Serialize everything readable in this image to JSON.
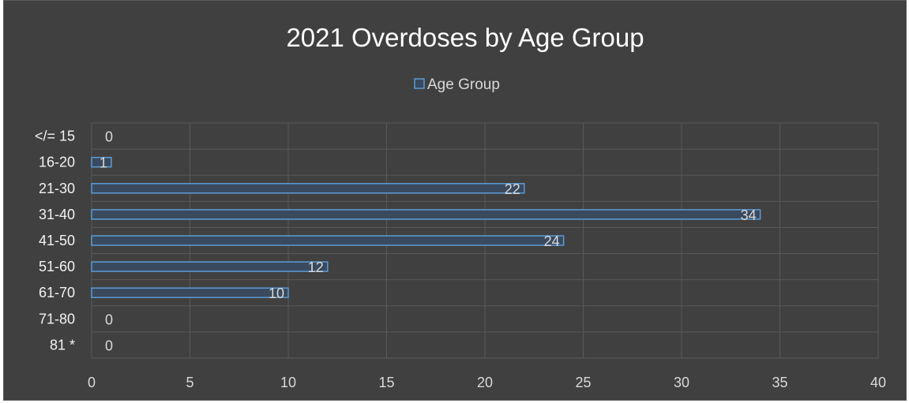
{
  "colors": {
    "background": "#404040",
    "gridline": "#595959",
    "bar_fill": "#3a4a5e",
    "bar_stroke": "#5b9bd5",
    "text": "#d9d9d9"
  },
  "chart_data": {
    "type": "bar",
    "orientation": "horizontal",
    "title": "2021 Overdoses by Age Group",
    "categories": [
      "</= 15",
      "16-20",
      "21-30",
      "31-40",
      "41-50",
      "51-60",
      "61-70",
      "71-80",
      "81 *"
    ],
    "series": [
      {
        "name": "Age Group",
        "values": [
          0,
          1,
          22,
          34,
          24,
          12,
          10,
          0,
          0
        ]
      }
    ],
    "data_labels": [
      "0",
      "1",
      "22",
      "34",
      "24",
      "12",
      "10",
      "0",
      "0"
    ],
    "xlim": [
      0,
      40
    ],
    "x_ticks": [
      "0",
      "5",
      "10",
      "15",
      "20",
      "25",
      "30",
      "35",
      "40"
    ],
    "legend_position": "top",
    "grid": true
  }
}
